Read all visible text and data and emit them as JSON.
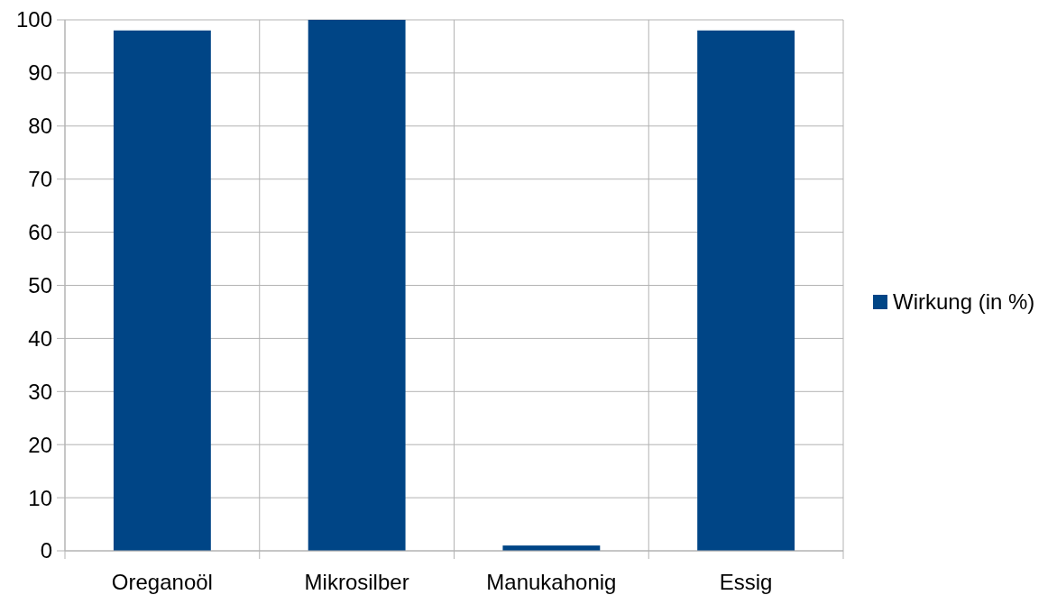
{
  "chart_data": {
    "type": "bar",
    "categories": [
      "Oreganoöl",
      "Mikrosilber",
      "Manukahonig",
      "Essig"
    ],
    "series": [
      {
        "name": "Wirkung (in %)",
        "color": "#004586",
        "values": [
          98,
          100,
          1,
          98
        ]
      }
    ],
    "ylim": [
      0,
      100
    ],
    "yticks": [
      0,
      10,
      20,
      30,
      40,
      50,
      60,
      70,
      80,
      90,
      100
    ],
    "grid": true,
    "legend": "right"
  }
}
